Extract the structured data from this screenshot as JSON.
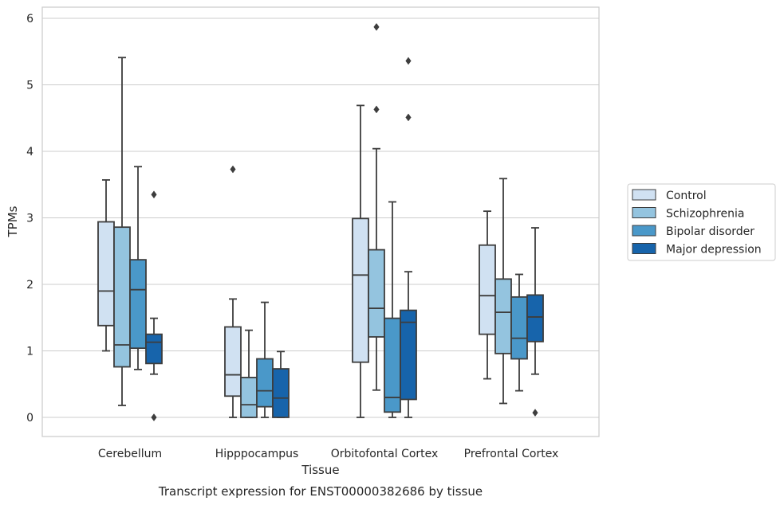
{
  "chart_data": {
    "type": "box",
    "title": "",
    "caption": "Transcript expression for ENST00000382686 by tissue",
    "xlabel": "Tissue",
    "ylabel": "TPMs",
    "ylim": [
      -0.28,
      6.18
    ],
    "yticks": [
      0,
      1,
      2,
      3,
      4,
      5,
      6
    ],
    "grid": "horizontal",
    "legend_position": "right",
    "categories": [
      "Cerebellum",
      "Hipppocampus",
      "Orbitofontal Cortex",
      "Prefrontal Cortex"
    ],
    "series": [
      {
        "name": "Control",
        "color": "#d0e1f2",
        "boxes": [
          {
            "q1": 1.38,
            "median": 1.9,
            "q3": 2.94,
            "whislo": 1.0,
            "whishi": 3.57,
            "fliers": []
          },
          {
            "q1": 0.32,
            "median": 0.64,
            "q3": 1.36,
            "whislo": 0.0,
            "whishi": 1.78,
            "fliers": [
              3.73
            ]
          },
          {
            "q1": 0.83,
            "median": 2.14,
            "q3": 2.99,
            "whislo": 0.0,
            "whishi": 4.69,
            "fliers": []
          },
          {
            "q1": 1.25,
            "median": 1.83,
            "q3": 2.59,
            "whislo": 0.58,
            "whishi": 3.1,
            "fliers": []
          }
        ]
      },
      {
        "name": "Schizophrenia",
        "color": "#94c4df",
        "boxes": [
          {
            "q1": 0.76,
            "median": 1.09,
            "q3": 2.86,
            "whislo": 0.18,
            "whishi": 5.41,
            "fliers": []
          },
          {
            "q1": 0.0,
            "median": 0.19,
            "q3": 0.6,
            "whislo": 0.0,
            "whishi": 1.31,
            "fliers": []
          },
          {
            "q1": 1.21,
            "median": 1.64,
            "q3": 2.52,
            "whislo": 0.41,
            "whishi": 4.04,
            "fliers": [
              4.63,
              5.87
            ]
          },
          {
            "q1": 0.96,
            "median": 1.58,
            "q3": 2.08,
            "whislo": 0.21,
            "whishi": 3.59,
            "fliers": []
          }
        ]
      },
      {
        "name": "Bipolar disorder",
        "color": "#4a98c9",
        "boxes": [
          {
            "q1": 1.04,
            "median": 1.92,
            "q3": 2.37,
            "whislo": 0.72,
            "whishi": 3.77,
            "fliers": []
          },
          {
            "q1": 0.16,
            "median": 0.4,
            "q3": 0.88,
            "whislo": 0.0,
            "whishi": 1.73,
            "fliers": []
          },
          {
            "q1": 0.08,
            "median": 0.3,
            "q3": 1.49,
            "whislo": 0.0,
            "whishi": 3.24,
            "fliers": []
          },
          {
            "q1": 0.88,
            "median": 1.19,
            "q3": 1.81,
            "whislo": 0.4,
            "whishi": 2.15,
            "fliers": []
          }
        ]
      },
      {
        "name": "Major depression",
        "color": "#1764ab",
        "boxes": [
          {
            "q1": 0.81,
            "median": 1.13,
            "q3": 1.25,
            "whislo": 0.65,
            "whishi": 1.49,
            "fliers": [
              0.0,
              3.35
            ]
          },
          {
            "q1": 0.0,
            "median": 0.29,
            "q3": 0.73,
            "whislo": 0.0,
            "whishi": 0.99,
            "fliers": []
          },
          {
            "q1": 0.27,
            "median": 1.43,
            "q3": 1.61,
            "whislo": 0.0,
            "whishi": 2.19,
            "fliers": [
              4.51,
              5.36
            ]
          },
          {
            "q1": 1.14,
            "median": 1.51,
            "q3": 1.84,
            "whislo": 0.65,
            "whishi": 2.85,
            "fliers": [
              0.07
            ]
          }
        ]
      }
    ]
  }
}
